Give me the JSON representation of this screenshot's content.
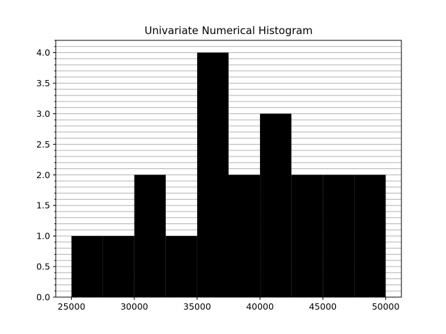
{
  "chart_data": {
    "type": "bar",
    "title": "Univariate Numerical Histogram",
    "xlabel": "",
    "ylabel": "",
    "bins": [
      {
        "start": 25000,
        "end": 27500,
        "count": 1
      },
      {
        "start": 27500,
        "end": 30000,
        "count": 1
      },
      {
        "start": 30000,
        "end": 32500,
        "count": 2
      },
      {
        "start": 32500,
        "end": 35000,
        "count": 1
      },
      {
        "start": 35000,
        "end": 37500,
        "count": 4
      },
      {
        "start": 37500,
        "end": 40000,
        "count": 2
      },
      {
        "start": 40000,
        "end": 42500,
        "count": 3
      },
      {
        "start": 42500,
        "end": 45000,
        "count": 2
      },
      {
        "start": 45000,
        "end": 47500,
        "count": 2
      },
      {
        "start": 47500,
        "end": 50000,
        "count": 2
      }
    ],
    "xlim": [
      23750,
      51250
    ],
    "ylim": [
      0,
      4.2
    ],
    "x_ticks": [
      25000,
      30000,
      35000,
      40000,
      45000,
      50000
    ],
    "x_tick_labels": [
      "25000",
      "30000",
      "35000",
      "40000",
      "45000",
      "50000"
    ],
    "y_ticks": [
      0,
      0.5,
      1,
      1.5,
      2,
      2.5,
      3,
      3.5,
      4
    ],
    "y_tick_labels": [
      "0.0",
      "0.5",
      "1.0",
      "1.5",
      "2.0",
      "2.5",
      "3.0",
      "3.5",
      "4.0"
    ],
    "y_minor_step": 0.1,
    "grid": "y-minor",
    "bar_color": "#000000",
    "grid_color": "#b0b0b0"
  }
}
